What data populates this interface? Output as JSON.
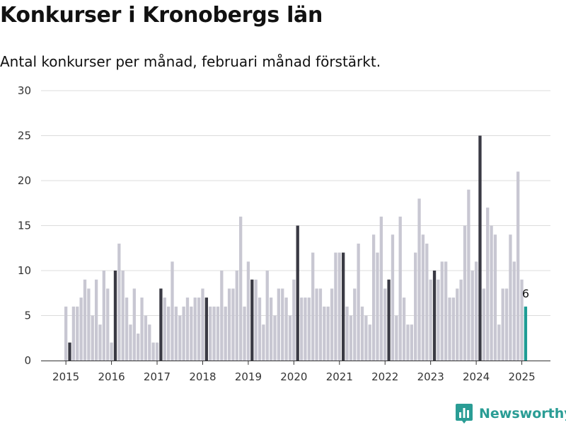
{
  "title": "Konkurser i Kronobergs län",
  "subtitle": "Antal konkurser per månad, februari månad förstärkt.",
  "brand": "Newsworthy",
  "colors": {
    "bar": "#c8c7d2",
    "february": "#3a3a44",
    "latest": "#1e9c94",
    "grid": "#dcdcdc",
    "axis": "#333333",
    "brand": "#2a9d95"
  },
  "chart_data": {
    "type": "bar",
    "title": "Konkurser i Kronobergs län",
    "subtitle": "Antal konkurser per månad, februari månad förstärkt.",
    "xlabel": "",
    "ylabel": "",
    "ylim": [
      0,
      30
    ],
    "yticks": [
      0,
      5,
      10,
      15,
      20,
      25,
      30
    ],
    "xticks": [
      "2015",
      "2016",
      "2017",
      "2018",
      "2019",
      "2020",
      "2021",
      "2022",
      "2023",
      "2024",
      "2025"
    ],
    "grid": true,
    "highlight": "february",
    "start_month": "2015-01",
    "series": [
      {
        "values": [
          6,
          2,
          6,
          6,
          7,
          9,
          8,
          5,
          9,
          4,
          10,
          8,
          2,
          10,
          13,
          10,
          7,
          4,
          8,
          3,
          7,
          5,
          4,
          2,
          2,
          8,
          7,
          6,
          11,
          6,
          5,
          6,
          7,
          6,
          7,
          7,
          8,
          7,
          6,
          6,
          6,
          10,
          6,
          8,
          8,
          10,
          16,
          6,
          11,
          9,
          9,
          7,
          4,
          10,
          7,
          5,
          8,
          8,
          7,
          5,
          9,
          15,
          7,
          7,
          7,
          12,
          8,
          8,
          6,
          6,
          8,
          12,
          12,
          12,
          6,
          5,
          8,
          13,
          6,
          5,
          4,
          14,
          12,
          16,
          8,
          9,
          14,
          5,
          16,
          7,
          4,
          4,
          12,
          18,
          14,
          13,
          9,
          10,
          9,
          11,
          11,
          7,
          7,
          8,
          9,
          15,
          19,
          10,
          11,
          25,
          8,
          17,
          15,
          14,
          4,
          8,
          8,
          14,
          11,
          21,
          9,
          6
        ]
      }
    ],
    "annotations": [
      {
        "text": "6",
        "target": "last"
      }
    ]
  }
}
